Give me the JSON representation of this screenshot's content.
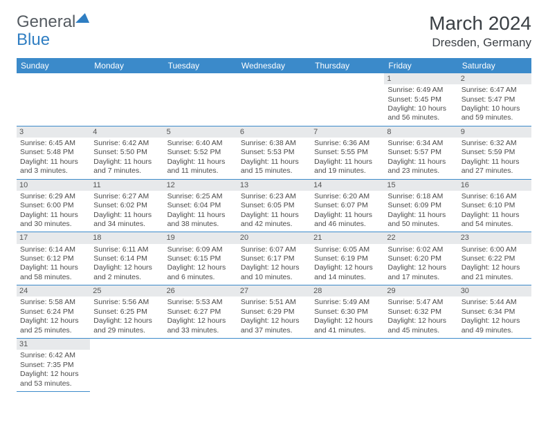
{
  "logo": {
    "part1": "General",
    "part2": "Blue"
  },
  "title": {
    "month": "March 2024",
    "location": "Dresden, Germany"
  },
  "dayHeaders": [
    "Sunday",
    "Monday",
    "Tuesday",
    "Wednesday",
    "Thursday",
    "Friday",
    "Saturday"
  ],
  "colors": {
    "headerBg": "#3b8aca",
    "headerText": "#ffffff",
    "dayNumBg": "#e7e9eb",
    "borderColor": "#3b8aca",
    "textColor": "#4a4a4a",
    "logoGray": "#555b61",
    "logoBlue": "#2f7ec2"
  },
  "weeks": [
    [
      null,
      null,
      null,
      null,
      null,
      {
        "d": "1",
        "sr": "6:49 AM",
        "ss": "5:45 PM",
        "dl": "10 hours and 56 minutes."
      },
      {
        "d": "2",
        "sr": "6:47 AM",
        "ss": "5:47 PM",
        "dl": "10 hours and 59 minutes."
      }
    ],
    [
      {
        "d": "3",
        "sr": "6:45 AM",
        "ss": "5:48 PM",
        "dl": "11 hours and 3 minutes."
      },
      {
        "d": "4",
        "sr": "6:42 AM",
        "ss": "5:50 PM",
        "dl": "11 hours and 7 minutes."
      },
      {
        "d": "5",
        "sr": "6:40 AM",
        "ss": "5:52 PM",
        "dl": "11 hours and 11 minutes."
      },
      {
        "d": "6",
        "sr": "6:38 AM",
        "ss": "5:53 PM",
        "dl": "11 hours and 15 minutes."
      },
      {
        "d": "7",
        "sr": "6:36 AM",
        "ss": "5:55 PM",
        "dl": "11 hours and 19 minutes."
      },
      {
        "d": "8",
        "sr": "6:34 AM",
        "ss": "5:57 PM",
        "dl": "11 hours and 23 minutes."
      },
      {
        "d": "9",
        "sr": "6:32 AM",
        "ss": "5:59 PM",
        "dl": "11 hours and 27 minutes."
      }
    ],
    [
      {
        "d": "10",
        "sr": "6:29 AM",
        "ss": "6:00 PM",
        "dl": "11 hours and 30 minutes."
      },
      {
        "d": "11",
        "sr": "6:27 AM",
        "ss": "6:02 PM",
        "dl": "11 hours and 34 minutes."
      },
      {
        "d": "12",
        "sr": "6:25 AM",
        "ss": "6:04 PM",
        "dl": "11 hours and 38 minutes."
      },
      {
        "d": "13",
        "sr": "6:23 AM",
        "ss": "6:05 PM",
        "dl": "11 hours and 42 minutes."
      },
      {
        "d": "14",
        "sr": "6:20 AM",
        "ss": "6:07 PM",
        "dl": "11 hours and 46 minutes."
      },
      {
        "d": "15",
        "sr": "6:18 AM",
        "ss": "6:09 PM",
        "dl": "11 hours and 50 minutes."
      },
      {
        "d": "16",
        "sr": "6:16 AM",
        "ss": "6:10 PM",
        "dl": "11 hours and 54 minutes."
      }
    ],
    [
      {
        "d": "17",
        "sr": "6:14 AM",
        "ss": "6:12 PM",
        "dl": "11 hours and 58 minutes."
      },
      {
        "d": "18",
        "sr": "6:11 AM",
        "ss": "6:14 PM",
        "dl": "12 hours and 2 minutes."
      },
      {
        "d": "19",
        "sr": "6:09 AM",
        "ss": "6:15 PM",
        "dl": "12 hours and 6 minutes."
      },
      {
        "d": "20",
        "sr": "6:07 AM",
        "ss": "6:17 PM",
        "dl": "12 hours and 10 minutes."
      },
      {
        "d": "21",
        "sr": "6:05 AM",
        "ss": "6:19 PM",
        "dl": "12 hours and 14 minutes."
      },
      {
        "d": "22",
        "sr": "6:02 AM",
        "ss": "6:20 PM",
        "dl": "12 hours and 17 minutes."
      },
      {
        "d": "23",
        "sr": "6:00 AM",
        "ss": "6:22 PM",
        "dl": "12 hours and 21 minutes."
      }
    ],
    [
      {
        "d": "24",
        "sr": "5:58 AM",
        "ss": "6:24 PM",
        "dl": "12 hours and 25 minutes."
      },
      {
        "d": "25",
        "sr": "5:56 AM",
        "ss": "6:25 PM",
        "dl": "12 hours and 29 minutes."
      },
      {
        "d": "26",
        "sr": "5:53 AM",
        "ss": "6:27 PM",
        "dl": "12 hours and 33 minutes."
      },
      {
        "d": "27",
        "sr": "5:51 AM",
        "ss": "6:29 PM",
        "dl": "12 hours and 37 minutes."
      },
      {
        "d": "28",
        "sr": "5:49 AM",
        "ss": "6:30 PM",
        "dl": "12 hours and 41 minutes."
      },
      {
        "d": "29",
        "sr": "5:47 AM",
        "ss": "6:32 PM",
        "dl": "12 hours and 45 minutes."
      },
      {
        "d": "30",
        "sr": "5:44 AM",
        "ss": "6:34 PM",
        "dl": "12 hours and 49 minutes."
      }
    ],
    [
      {
        "d": "31",
        "sr": "6:42 AM",
        "ss": "7:35 PM",
        "dl": "12 hours and 53 minutes."
      },
      null,
      null,
      null,
      null,
      null,
      null
    ]
  ],
  "labels": {
    "sunrise": "Sunrise: ",
    "sunset": "Sunset: ",
    "daylight": "Daylight: "
  }
}
